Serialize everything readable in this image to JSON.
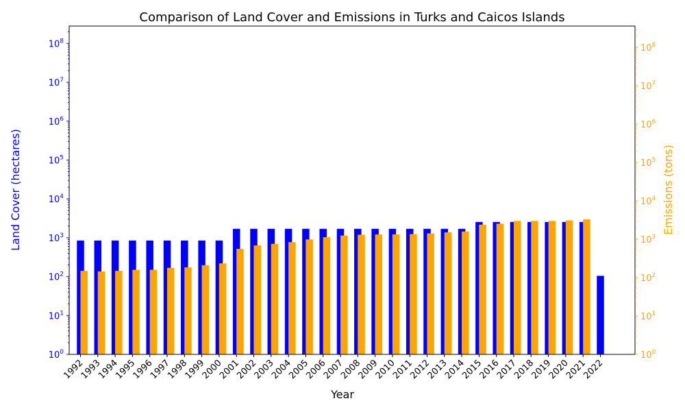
{
  "chart_data": {
    "type": "bar",
    "title": "Comparison of Land Cover and Emissions in Turks and Caicos Islands",
    "xlabel": "Year",
    "ylabel_left": "Land Cover (hectares)",
    "ylabel_right": "Emissions (tons)",
    "yscale": "log",
    "ylim_left": [
      1,
      280000000
    ],
    "ylim_right": [
      1,
      360000000
    ],
    "y_ticks_left": [
      "10^0",
      "10^1",
      "10^2",
      "10^3",
      "10^4",
      "10^5",
      "10^6",
      "10^7",
      "10^8"
    ],
    "y_ticks_right": [
      "10^0",
      "10^1",
      "10^2",
      "10^3",
      "10^4",
      "10^5",
      "10^6",
      "10^7",
      "10^8"
    ],
    "grid": false,
    "colors": {
      "land_cover": "#0000ff",
      "emissions": "#ffa500",
      "left_axis": "#0000ff",
      "right_axis": "#ffa500"
    },
    "categories": [
      "1992",
      "1993",
      "1994",
      "1995",
      "1996",
      "1997",
      "1998",
      "1999",
      "2000",
      "2001",
      "2002",
      "2003",
      "2004",
      "2005",
      "2006",
      "2007",
      "2008",
      "2009",
      "2010",
      "2011",
      "2012",
      "2013",
      "2014",
      "2015",
      "2016",
      "2017",
      "2018",
      "2019",
      "2020",
      "2021",
      "2022"
    ],
    "series": [
      {
        "axis": "left",
        "values": [
          850,
          850,
          850,
          850,
          850,
          850,
          850,
          850,
          850,
          1700,
          1700,
          1700,
          1700,
          1700,
          1700,
          1700,
          1700,
          1700,
          1700,
          1700,
          1700,
          1700,
          1700,
          2550,
          2550,
          2550,
          2550,
          2550,
          2550,
          2550,
          105
        ]
      },
      {
        "axis": "right",
        "values": [
          150,
          145,
          150,
          160,
          160,
          180,
          185,
          210,
          235,
          560,
          690,
          760,
          840,
          990,
          1130,
          1250,
          1310,
          1330,
          1340,
          1360,
          1420,
          1510,
          1590,
          2400,
          2540,
          3000,
          3000,
          3000,
          3100,
          3300,
          null
        ]
      }
    ]
  }
}
